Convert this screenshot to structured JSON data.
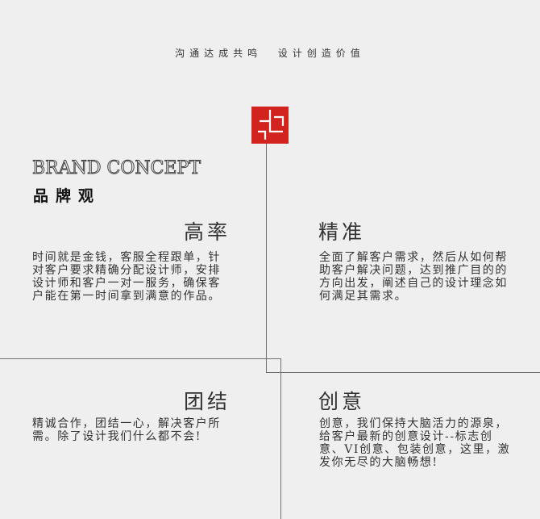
{
  "header": {
    "slogan": "沟通达成共鸣  设计创造价值"
  },
  "brand": {
    "title_en": "BRAND CONCEPT",
    "title_cn": "品牌观"
  },
  "colors": {
    "accent": "#d3231f",
    "line": "#6f6f6f",
    "background": "#efefef"
  },
  "quadrants": [
    {
      "heading": "高率",
      "body": "时间就是金钱，客服全程跟单，针对客户要求精确分配设计师，安排设计师和客户一对一服务，确保客户能在第一时间拿到满意的作品。"
    },
    {
      "heading": "精准",
      "body": "全面了解客户需求，然后从如何帮助客户解决问题，达到推广目的的方向出发，阐述自己的设计理念如何满足其需求。"
    },
    {
      "heading": "团结",
      "body": "精诚合作，团结一心，解决客户所需。除了设计我们什么都不会!"
    },
    {
      "heading": "创意",
      "body": "创意，我们保持大脑活力的源泉，给客户最新的创意设计--标志创意、VI创意、包装创意，这里，激发你无尽的大脑畅想!"
    }
  ]
}
